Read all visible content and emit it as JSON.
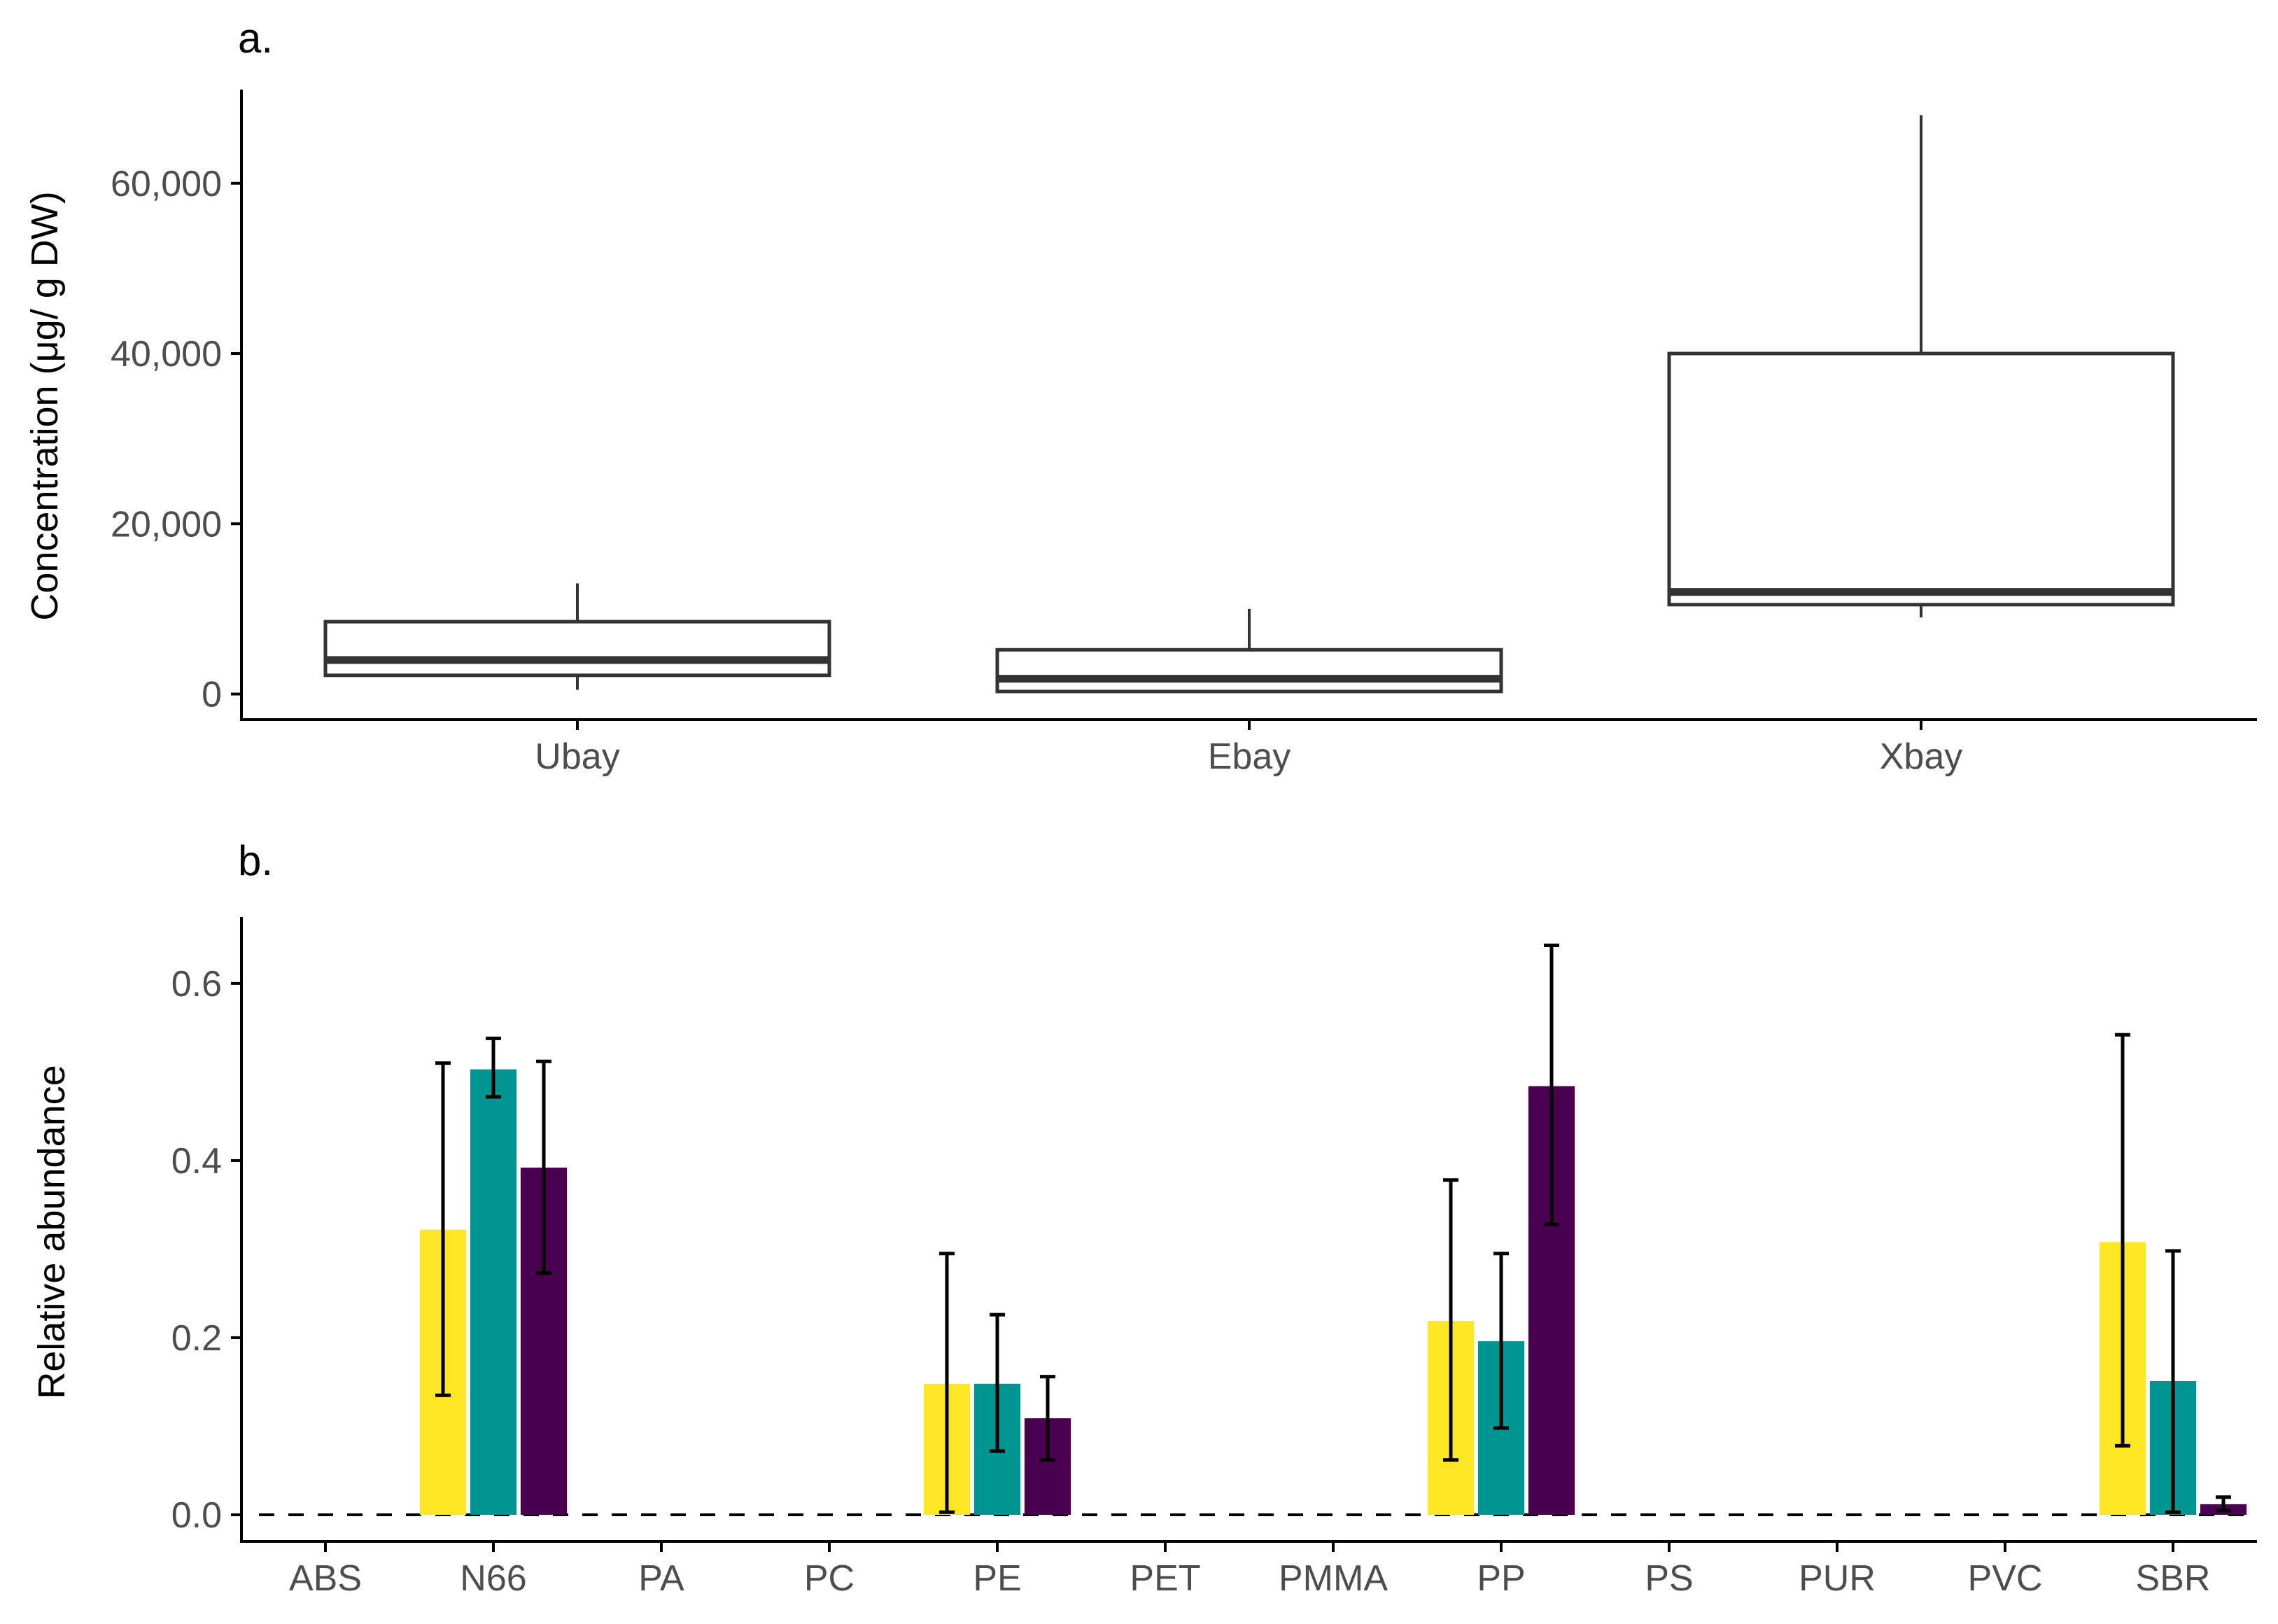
{
  "chart_data": [
    {
      "panel": "a.",
      "type": "boxplot",
      "ylabel": "Concentration (μg/ g DW)",
      "ylim": [
        -3000,
        71000
      ],
      "yticks": [
        0,
        20000,
        40000,
        60000
      ],
      "ytick_labels": [
        "0",
        "20,000",
        "40,000",
        "60,000"
      ],
      "categories": [
        "Ubay",
        "Ebay",
        "Xbay"
      ],
      "boxes": [
        {
          "name": "Ubay",
          "whisker_low": 500,
          "q1": 2200,
          "median": 4000,
          "q3": 8500,
          "whisker_high": 13000
        },
        {
          "name": "Ebay",
          "whisker_low": 300,
          "q1": 300,
          "median": 1800,
          "q3": 5200,
          "whisker_high": 10000
        },
        {
          "name": "Xbay",
          "whisker_low": 9000,
          "q1": 10500,
          "median": 12000,
          "q3": 40000,
          "whisker_high": 68000
        }
      ]
    },
    {
      "panel": "b.",
      "type": "bar",
      "ylabel": "Relative abundance",
      "ylim": [
        -0.03,
        0.675
      ],
      "yticks": [
        0.0,
        0.2,
        0.4,
        0.6
      ],
      "ytick_labels": [
        "0.0",
        "0.2",
        "0.4",
        "0.6"
      ],
      "reference_line": 0,
      "categories": [
        "ABS",
        "N66",
        "PA",
        "PC",
        "PE",
        "PET",
        "PMMA",
        "PP",
        "PS",
        "PUR",
        "PVC",
        "SBR"
      ],
      "series": [
        {
          "color": "#FDE725",
          "values": [
            0,
            0.322,
            0,
            0,
            0.148,
            0,
            0,
            0.219,
            0,
            0,
            0,
            0.308
          ],
          "err_low": [
            null,
            0.135,
            null,
            null,
            0.003,
            null,
            null,
            0.062,
            null,
            null,
            null,
            0.078
          ],
          "err_high": [
            null,
            0.51,
            null,
            null,
            0.295,
            null,
            null,
            0.378,
            null,
            null,
            null,
            0.542
          ]
        },
        {
          "color": "#009591",
          "values": [
            0,
            0.503,
            0,
            0,
            0.148,
            0,
            0,
            0.196,
            0,
            0,
            0,
            0.151
          ],
          "err_low": [
            null,
            0.472,
            null,
            null,
            0.072,
            null,
            null,
            0.098,
            null,
            null,
            null,
            0.003
          ],
          "err_high": [
            null,
            0.538,
            null,
            null,
            0.226,
            null,
            null,
            0.295,
            null,
            null,
            null,
            0.298
          ]
        },
        {
          "color": "#4B004F",
          "values": [
            0,
            0.392,
            0,
            0,
            0.109,
            0,
            0,
            0.484,
            0,
            0,
            0,
            0.012
          ],
          "err_low": [
            null,
            0.273,
            null,
            null,
            0.062,
            null,
            null,
            0.328,
            null,
            null,
            null,
            0.005
          ],
          "err_high": [
            null,
            0.512,
            null,
            null,
            0.156,
            null,
            null,
            0.643,
            null,
            null,
            null,
            0.02
          ]
        }
      ]
    }
  ]
}
